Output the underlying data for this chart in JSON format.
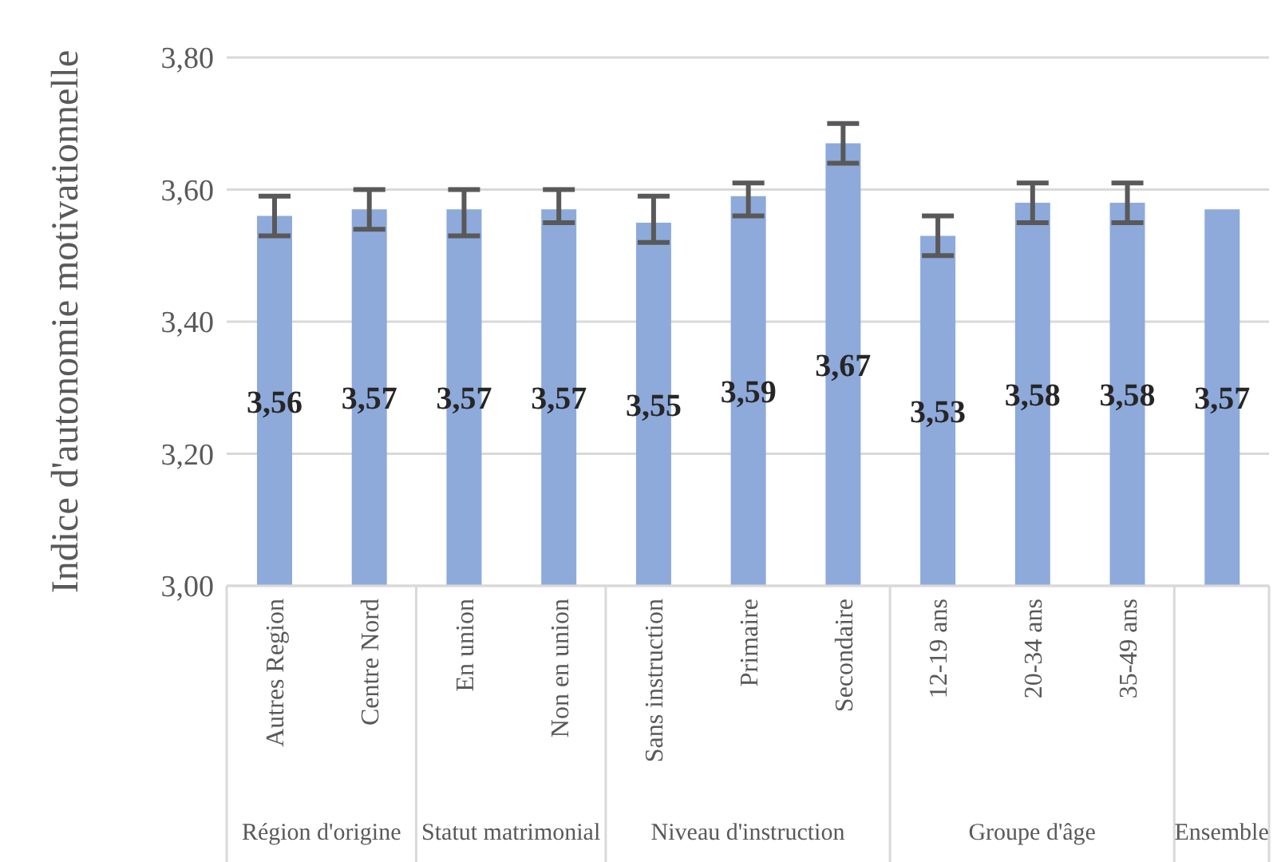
{
  "chart_data": {
    "type": "bar",
    "ylabel": "Indice d'autonomie motivationnelle",
    "categories": [
      "Autres Region",
      "Centre Nord",
      "En union",
      "Non en union",
      "Sans instruction",
      "Primaire",
      "Secondaire",
      "12-19 ans",
      "20-34 ans",
      "35-49 ans",
      null
    ],
    "values": [
      3.56,
      3.57,
      3.57,
      3.57,
      3.55,
      3.59,
      3.67,
      3.53,
      3.58,
      3.58,
      3.57
    ],
    "errors": [
      [
        3.53,
        3.59
      ],
      [
        3.54,
        3.6
      ],
      [
        3.53,
        3.6
      ],
      [
        3.55,
        3.6
      ],
      [
        3.52,
        3.59
      ],
      [
        3.56,
        3.61
      ],
      [
        3.64,
        3.7
      ],
      [
        3.5,
        3.56
      ],
      [
        3.55,
        3.61
      ],
      [
        3.55,
        3.61
      ],
      null
    ],
    "color": "#8eaadb",
    "value_labels": [
      "3,56",
      "3,57",
      "3,57",
      "3,57",
      "3,55",
      "3,59",
      "3,67",
      "3,53",
      "3,58",
      "3,58",
      "3,57"
    ],
    "ylim": [
      3,
      3.8
    ],
    "yticks": [
      {
        "value": 3,
        "label": "3,00"
      },
      {
        "value": 3.2,
        "label": "3,20"
      },
      {
        "value": 3.4,
        "label": "3,40"
      },
      {
        "value": 3.6,
        "label": "3,60"
      },
      {
        "value": 3.8,
        "label": "3,80"
      }
    ],
    "grid": "y",
    "annotations": [
      "Région d'origine",
      "Statut matrimonial",
      "Niveau d'instruction",
      "Groupe d'âge",
      "Ensemble"
    ]
  }
}
